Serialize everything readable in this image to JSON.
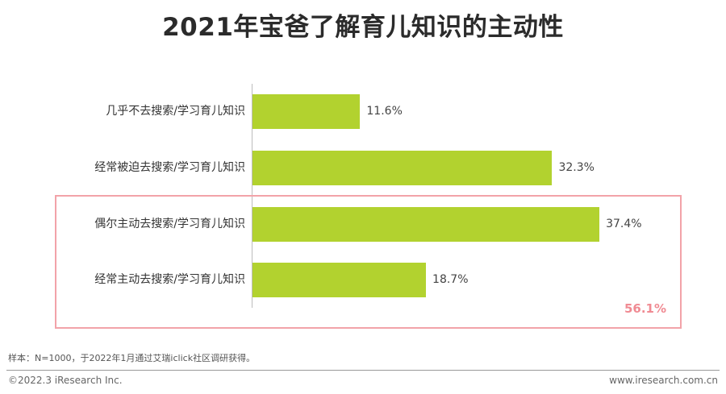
{
  "chart_data": {
    "type": "bar",
    "orientation": "horizontal",
    "title": "2021年宝爸了解育儿知识的主动性",
    "categories": [
      "几乎不去搜索/学习育儿知识",
      "经常被迫去搜索/学习育儿知识",
      "偶尔主动去搜索/学习育儿知识",
      "经常主动去搜索/学习育儿知识"
    ],
    "values": [
      11.6,
      32.3,
      37.4,
      18.7
    ],
    "value_labels": [
      "11.6%",
      "32.3%",
      "37.4%",
      "18.7%"
    ],
    "xlim": [
      0,
      50
    ],
    "bar_color": "#b2d22f",
    "highlight": {
      "categories": [
        "偶尔主动去搜索/学习育儿知识",
        "经常主动去搜索/学习育儿知识"
      ],
      "total_label": "56.1%",
      "color": "#f08b93"
    },
    "grid": false,
    "legend": "none"
  },
  "note": "样本：N=1000，于2022年1月通过艾瑞iclick社区调研获得。",
  "footer": {
    "left": "©2022.3 iResearch Inc.",
    "right": "www.iresearch.com.cn"
  }
}
